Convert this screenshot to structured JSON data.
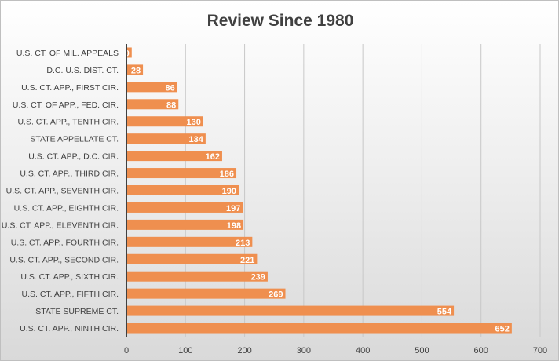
{
  "chart_data": {
    "type": "bar",
    "orientation": "horizontal",
    "title": "Review Since 1980",
    "categories": [
      "U.S. CT. OF MIL. APPEALS",
      "D.C. U.S. DIST. CT.",
      "U.S. CT. APP., FIRST CIR.",
      "U.S. CT. OF APP., FED. CIR.",
      "U.S. CT. APP., TENTH CIR.",
      "STATE APPELLATE CT.",
      "U.S. CT. APP., D.C. CIR.",
      "U.S. CT. APP., THIRD CIR.",
      "U.S. CT. APP., SEVENTH CIR.",
      "U.S. CT. APP., EIGHTH CIR.",
      "U.S. CT. APP., ELEVENTH CIR.",
      "U.S. CT. APP., FOURTH CIR.",
      "U.S. CT. APP., SECOND CIR.",
      "U.S. CT. APP., SIXTH CIR.",
      "U.S. CT. APP., FIFTH CIR.",
      "STATE SUPREME CT.",
      "U.S. CT. APP., NINTH CIR."
    ],
    "values": [
      9,
      28,
      86,
      88,
      130,
      134,
      162,
      186,
      190,
      197,
      198,
      213,
      221,
      239,
      269,
      554,
      652
    ],
    "xlim": [
      0,
      700
    ],
    "xticks": [
      0,
      100,
      200,
      300,
      400,
      500,
      600,
      700
    ],
    "grid": true,
    "bar_color": "#ef8f4f",
    "xlabel": "",
    "ylabel": ""
  }
}
